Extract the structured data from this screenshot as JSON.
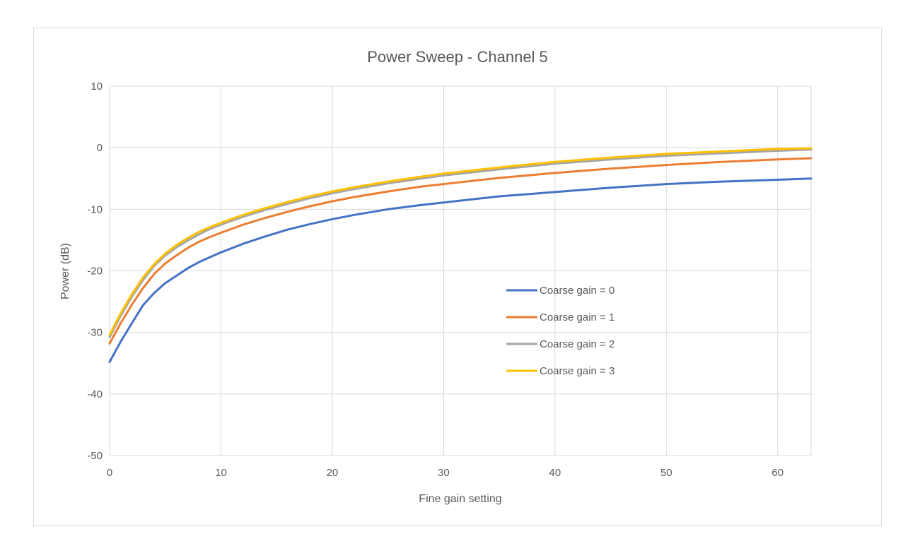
{
  "chart_data": {
    "type": "line",
    "title": "Power Sweep - Channel 5",
    "xlabel": "Fine gain setting",
    "ylabel": "Power (dB)",
    "xlim": [
      0,
      63
    ],
    "ylim": [
      -50,
      10
    ],
    "xticks": [
      0,
      10,
      20,
      30,
      40,
      50,
      60
    ],
    "yticks": [
      10,
      0,
      -10,
      -20,
      -30,
      -40,
      -50
    ],
    "grid": true,
    "legend_position": "inside-right",
    "x": [
      0,
      1,
      2,
      3,
      4,
      5,
      6,
      7,
      8,
      9,
      10,
      12,
      14,
      16,
      18,
      20,
      22,
      25,
      28,
      30,
      35,
      40,
      45,
      50,
      55,
      60,
      63
    ],
    "series": [
      {
        "name": "Coarse gain = 0",
        "color": "#4472c4",
        "values": [
          -34.8,
          -31.5,
          -28.5,
          -25.6,
          -23.6,
          -22.0,
          -20.8,
          -19.6,
          -18.6,
          -17.8,
          -17.0,
          -15.6,
          -14.4,
          -13.3,
          -12.4,
          -11.6,
          -10.9,
          -10.0,
          -9.3,
          -8.9,
          -7.9,
          -7.2,
          -6.5,
          -5.9,
          -5.5,
          -5.2,
          -5.0
        ]
      },
      {
        "name": "Coarse gain = 1",
        "color": "#ed7d31",
        "values": [
          -31.8,
          -28.5,
          -25.5,
          -22.8,
          -20.5,
          -18.8,
          -17.5,
          -16.3,
          -15.3,
          -14.5,
          -13.8,
          -12.5,
          -11.4,
          -10.4,
          -9.5,
          -8.7,
          -8.0,
          -7.1,
          -6.3,
          -5.9,
          -4.9,
          -4.1,
          -3.4,
          -2.8,
          -2.3,
          -1.9,
          -1.7
        ]
      },
      {
        "name": "Coarse gain = 2",
        "color": "#a5a5a5",
        "values": [
          -30.8,
          -27.3,
          -24.2,
          -21.5,
          -19.2,
          -17.5,
          -16.2,
          -15.1,
          -14.1,
          -13.2,
          -12.5,
          -11.2,
          -10.1,
          -9.1,
          -8.2,
          -7.4,
          -6.7,
          -5.8,
          -5.0,
          -4.5,
          -3.5,
          -2.6,
          -1.9,
          -1.3,
          -0.9,
          -0.5,
          -0.3
        ]
      },
      {
        "name": "Coarse gain = 3",
        "color": "#ffc000",
        "values": [
          -30.4,
          -26.9,
          -23.8,
          -21.1,
          -18.9,
          -17.2,
          -15.8,
          -14.7,
          -13.7,
          -12.9,
          -12.2,
          -10.9,
          -9.8,
          -8.8,
          -7.9,
          -7.1,
          -6.4,
          -5.5,
          -4.7,
          -4.2,
          -3.2,
          -2.3,
          -1.6,
          -1.0,
          -0.6,
          -0.2,
          -0.1
        ]
      }
    ]
  }
}
